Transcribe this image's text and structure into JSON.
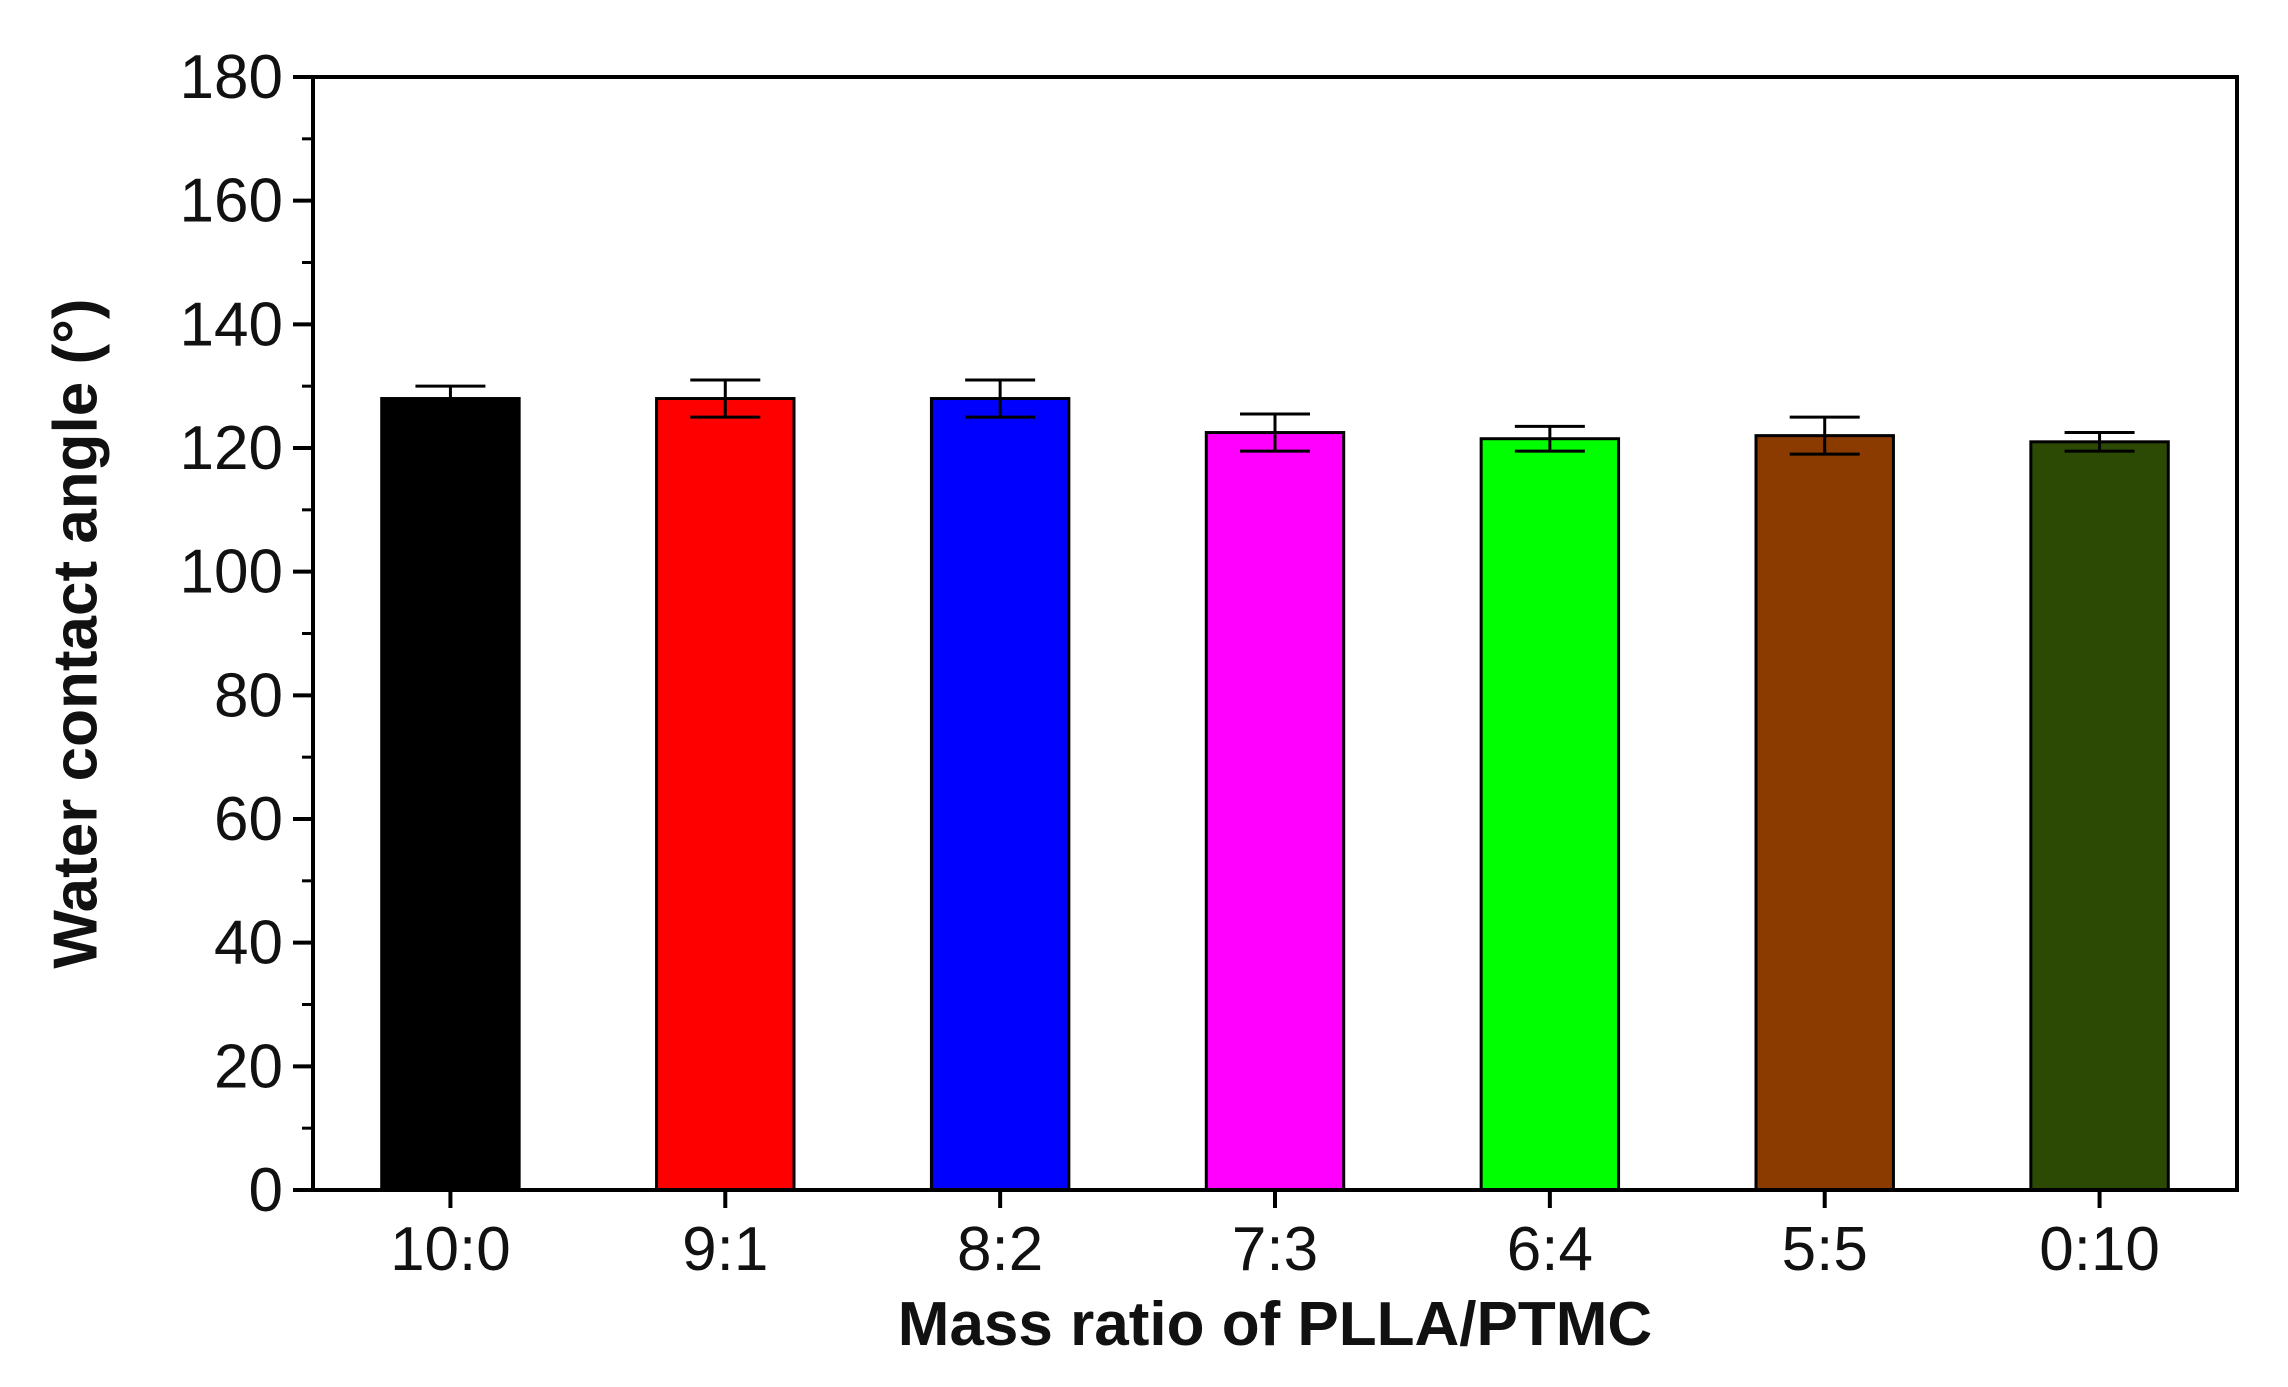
{
  "chart_data": {
    "type": "bar",
    "title": "",
    "xlabel": "Mass ratio of PLLA/PTMC",
    "ylabel": "Water contact angle (°)",
    "categories": [
      "10:0",
      "9:1",
      "8:2",
      "7:3",
      "6:4",
      "5:5",
      "0:10"
    ],
    "values": [
      128,
      128,
      128,
      122.5,
      121.5,
      122,
      121
    ],
    "errors": [
      2,
      3,
      3,
      3,
      2,
      3,
      1.5
    ],
    "colors": [
      "#000000",
      "#ff0000",
      "#0000ff",
      "#ff00ff",
      "#00ff00",
      "#8b3a00",
      "#2d4a05"
    ],
    "ylim": [
      0,
      180
    ],
    "yticks": [
      0,
      20,
      40,
      60,
      80,
      100,
      120,
      140,
      160,
      180
    ],
    "grid": false,
    "legend": "none"
  }
}
